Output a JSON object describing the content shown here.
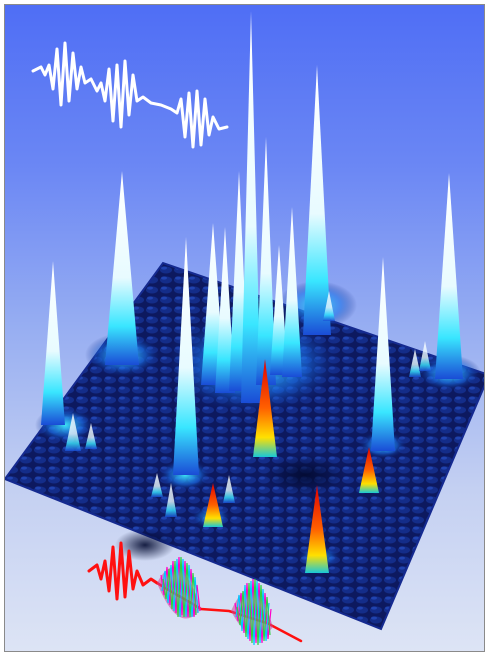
{
  "scene": {
    "background": {
      "top": "#4f6ef5",
      "bottom": "#dde4f5"
    },
    "surface": {
      "base": "#0a1450",
      "ridge": "#1c46c8",
      "peak_glow": "#39e6ff",
      "peak_tip": "#ffffff"
    },
    "hot_peaks": {
      "base": "#ffd200",
      "mid": "#ff7a00",
      "tip": "#e00000"
    },
    "waveforms": {
      "top_color": "#ffffff",
      "bottom_color": "#ff1010",
      "modulated_colors": [
        "#ff00c8",
        "#00c8ff",
        "#30d040",
        "#ff3030"
      ]
    }
  }
}
